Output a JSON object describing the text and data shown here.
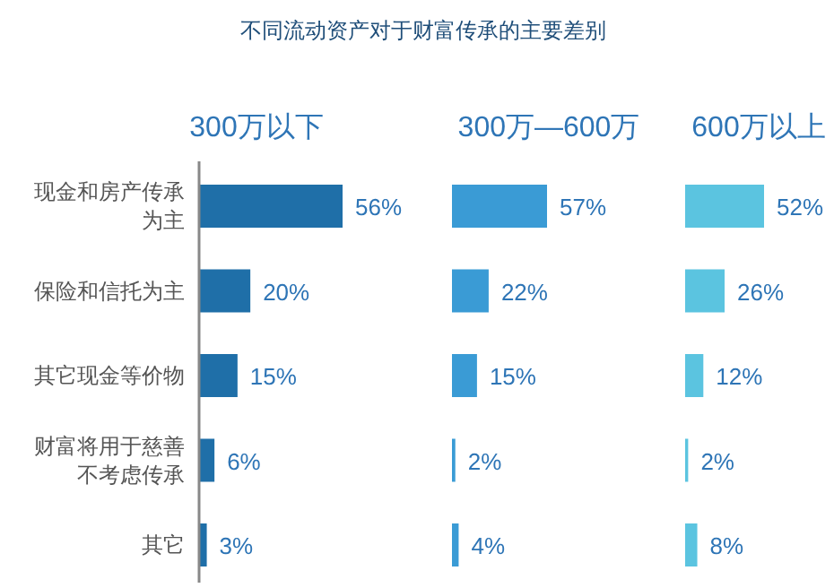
{
  "chart_data": [
    {
      "type": "bar",
      "orientation": "horizontal",
      "title": "300万以下",
      "annotations": [
        "不同流动资产对于财富传承的主要差别"
      ],
      "categories": [
        "现金和房产传承为主",
        "保险和信托为主",
        "其它现金等价物",
        "财富将用于慈善不考虑传承",
        "其它"
      ],
      "values": [
        56,
        20,
        15,
        6,
        3
      ],
      "value_labels": [
        "56%",
        "20%",
        "15%",
        "6%",
        "3%"
      ],
      "color": "#1f6fa8",
      "tick_labels": "y"
    },
    {
      "type": "bar",
      "orientation": "horizontal",
      "title": "300万—600万",
      "categories": [
        "现金和房产传承为主",
        "保险和信托为主",
        "其它现金等价物",
        "财富将用于慈善不考虑传承",
        "其它"
      ],
      "values": [
        57,
        22,
        15,
        2,
        4
      ],
      "value_labels": [
        "57%",
        "22%",
        "15%",
        "2%",
        "4%"
      ],
      "color": "#3a9bd5",
      "tick_labels": false
    },
    {
      "type": "bar",
      "orientation": "horizontal",
      "title": "600万以上",
      "categories": [
        "现金和房产传承为主",
        "保险和信托为主",
        "其它现金等价物",
        "财富将用于慈善不考虑传承",
        "其它"
      ],
      "values": [
        52,
        26,
        12,
        2,
        8
      ],
      "value_labels": [
        "52%",
        "26%",
        "12%",
        "2%",
        "8%"
      ],
      "color": "#5bc4e0",
      "tick_labels": false
    }
  ]
}
